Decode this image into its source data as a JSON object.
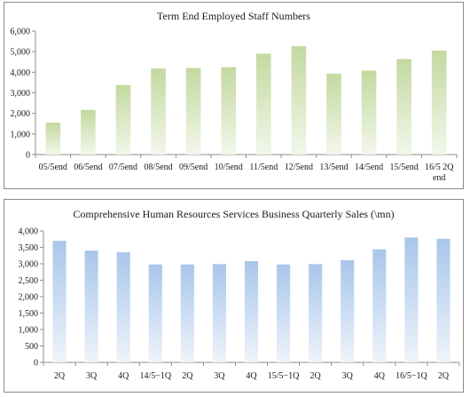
{
  "chart_data": [
    {
      "type": "bar",
      "title": "Term End Employed Staff Numbers",
      "categories": [
        [
          "05/5end"
        ],
        [
          "06/5end"
        ],
        [
          "07/5end"
        ],
        [
          "08/5end"
        ],
        [
          "09/5end"
        ],
        [
          "10/5end"
        ],
        [
          "11/5end"
        ],
        [
          "12/5end"
        ],
        [
          "13/5end"
        ],
        [
          "14/5end"
        ],
        [
          "15/5end"
        ],
        [
          "16/5 2Q",
          "end"
        ]
      ],
      "values": [
        1550,
        2170,
        3380,
        4180,
        4210,
        4250,
        4900,
        5270,
        3930,
        4080,
        4640,
        5050
      ],
      "ylim": [
        0,
        6000
      ],
      "yticks": [
        "0",
        "1,000",
        "2,000",
        "3,000",
        "4,000",
        "5,000",
        "6,000"
      ],
      "colors": {
        "bar_top": "#c3d9a0",
        "bar_bottom": "#f2f7ea"
      }
    },
    {
      "type": "bar",
      "title": "Comprehensive Human Resources Services Business Quarterly Sales (\\mn)",
      "categories": [
        [
          "2Q"
        ],
        [
          "3Q"
        ],
        [
          "4Q"
        ],
        [
          "14/5−1Q"
        ],
        [
          "2Q"
        ],
        [
          "3Q"
        ],
        [
          "4Q"
        ],
        [
          "15/5−1Q"
        ],
        [
          "2Q"
        ],
        [
          "3Q"
        ],
        [
          "4Q"
        ],
        [
          "16/5−1Q"
        ],
        [
          "2Q"
        ]
      ],
      "values": [
        3700,
        3400,
        3350,
        2980,
        2980,
        2990,
        3080,
        2980,
        2990,
        3110,
        3440,
        3800,
        3760
      ],
      "ylim": [
        0,
        4000
      ],
      "yticks": [
        "0",
        "500",
        "1,000",
        "1,500",
        "2,000",
        "2,500",
        "3,000",
        "3,500",
        "4,000"
      ],
      "colors": {
        "bar_top": "#a9c6ea",
        "bar_bottom": "#eef4fb"
      }
    }
  ]
}
